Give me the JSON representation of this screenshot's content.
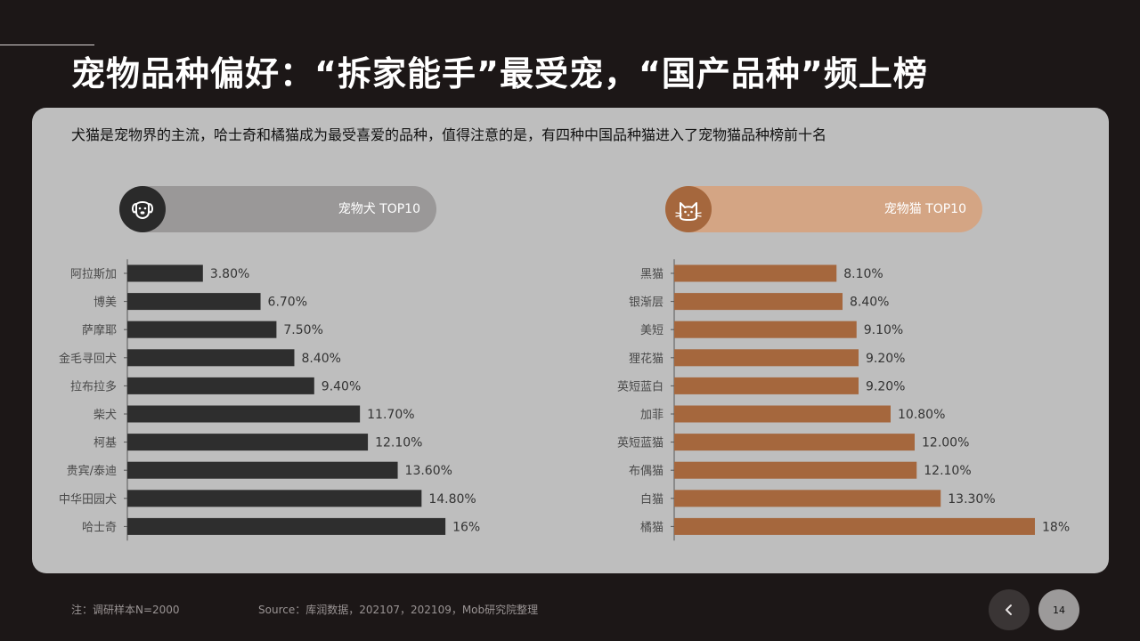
{
  "title": "宠物品种偏好：“拆家能手”最受宠，“国产品种”频上榜",
  "subtitle": "犬猫是宠物界的主流，哈士奇和橘猫成为最受喜爱的品种，值得注意的是，有四种中国品种猫进入了宠物猫品种榜前十名",
  "dog_header": {
    "label": "宠物犬 TOP10",
    "icon": "dog-icon"
  },
  "cat_header": {
    "label": "宠物猫 TOP10",
    "icon": "cat-icon"
  },
  "footnote": "注：调研样本N=2000",
  "source": "Source：库润数据，202107，202109，Mob研究院整理",
  "page_number": "14",
  "colors": {
    "dog_bar": "#2e2e2e",
    "cat_bar": "#a5673d",
    "panel": "#bebebe",
    "background": "#1c1717"
  },
  "chart_data": [
    {
      "type": "bar",
      "orientation": "horizontal",
      "categories": [
        "阿拉斯加",
        "博美",
        "萨摩耶",
        "金毛寻回犬",
        "拉布拉多",
        "柴犬",
        "柯基",
        "贵宾/泰迪",
        "中华田园犬",
        "哈士奇"
      ],
      "values": [
        3.8,
        6.7,
        7.5,
        8.4,
        9.4,
        11.7,
        12.1,
        13.6,
        14.8,
        16
      ],
      "value_labels": [
        "3.80%",
        "6.70%",
        "7.50%",
        "8.40%",
        "9.40%",
        "11.70%",
        "12.10%",
        "13.60%",
        "14.80%",
        "16%"
      ],
      "unit": "%",
      "xlim": [
        0,
        20
      ]
    },
    {
      "type": "bar",
      "orientation": "horizontal",
      "categories": [
        "黑猫",
        "银渐层",
        "美短",
        "狸花猫",
        "英短蓝白",
        "加菲",
        "英短蓝猫",
        "布偶猫",
        "白猫",
        "橘猫"
      ],
      "values": [
        8.1,
        8.4,
        9.1,
        9.2,
        9.2,
        10.8,
        12.0,
        12.1,
        13.3,
        18
      ],
      "value_labels": [
        "8.10%",
        "8.40%",
        "9.10%",
        "9.20%",
        "9.20%",
        "10.80%",
        "12.00%",
        "12.10%",
        "13.30%",
        "18%"
      ],
      "unit": "%",
      "xlim": [
        0,
        20
      ]
    }
  ]
}
